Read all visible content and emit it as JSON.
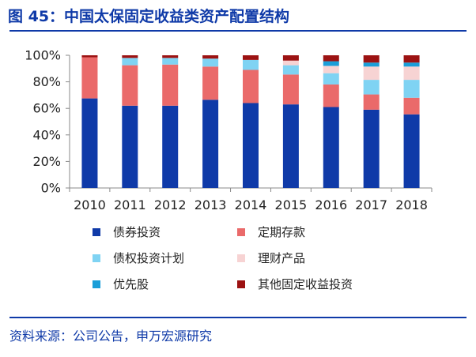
{
  "header": {
    "title": "图 45：中国太保固定收益类资产配置结构"
  },
  "footer": {
    "source": "资料来源：公司公告，申万宏源研究"
  },
  "chart_data": {
    "type": "bar",
    "stacked": true,
    "title": "",
    "xlabel": "",
    "ylabel": "",
    "ylim": [
      0,
      100
    ],
    "yticks": [
      "0%",
      "20%",
      "40%",
      "60%",
      "80%",
      "100%"
    ],
    "categories": [
      "2010",
      "2011",
      "2012",
      "2013",
      "2014",
      "2015",
      "2016",
      "2017",
      "2018"
    ],
    "series": [
      {
        "name": "债券投资",
        "color": "#0f3aa8",
        "values": [
          67.5,
          62,
          62,
          66.5,
          64,
          63,
          61,
          59,
          55.5
        ]
      },
      {
        "name": "定期存款",
        "color": "#ea6a6a",
        "values": [
          31,
          30.5,
          31,
          25,
          25,
          22.5,
          17,
          11.5,
          12.5
        ]
      },
      {
        "name": "债权投资计划",
        "color": "#7fd3f3",
        "values": [
          0,
          5.5,
          5,
          6,
          7.5,
          7,
          8.5,
          11,
          13.5
        ]
      },
      {
        "name": "理财产品",
        "color": "#f7d3d3",
        "values": [
          0,
          0,
          0,
          0,
          0,
          3.5,
          5.5,
          10,
          10
        ]
      },
      {
        "name": "优先股",
        "color": "#1a9ed8",
        "values": [
          0,
          0,
          0,
          0,
          0,
          0,
          3.5,
          3,
          3
        ]
      },
      {
        "name": "其他固定收益投资",
        "color": "#9c1212",
        "values": [
          1.5,
          2,
          2,
          2.5,
          3.5,
          4,
          4.5,
          5.5,
          5.5
        ]
      }
    ],
    "legend_position": "bottom",
    "grid": false
  }
}
